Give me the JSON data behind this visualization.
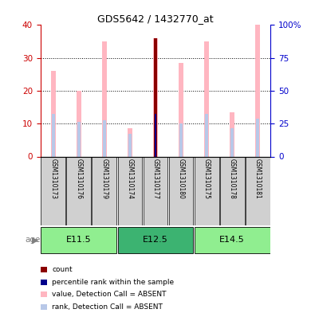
{
  "title": "GDS5642 / 1432770_at",
  "samples": [
    "GSM1310173",
    "GSM1310176",
    "GSM1310179",
    "GSM1310174",
    "GSM1310177",
    "GSM1310180",
    "GSM1310175",
    "GSM1310178",
    "GSM1310181"
  ],
  "groups": [
    {
      "label": "E11.5",
      "start": 0,
      "end": 2
    },
    {
      "label": "E12.5",
      "start": 3,
      "end": 5
    },
    {
      "label": "E14.5",
      "start": 6,
      "end": 8
    }
  ],
  "value_absent": [
    26.0,
    20.0,
    35.0,
    8.5,
    36.0,
    28.5,
    35.0,
    13.5,
    40.0
  ],
  "rank_absent": [
    13.0,
    10.5,
    11.0,
    7.0,
    13.0,
    10.0,
    13.0,
    8.5,
    11.5
  ],
  "count_val": [
    0,
    0,
    0,
    0,
    36.0,
    0,
    0,
    0,
    0
  ],
  "percentile_rank": [
    0,
    0,
    0,
    0,
    13.0,
    0,
    0,
    0,
    0
  ],
  "ylim_left": [
    0,
    40
  ],
  "ylim_right": [
    0,
    100
  ],
  "yticks_left": [
    0,
    10,
    20,
    30,
    40
  ],
  "yticks_right": [
    0,
    25,
    50,
    75,
    100
  ],
  "color_count": "#8B0000",
  "color_percentile": "#00008B",
  "color_value_absent": "#FFB6C1",
  "color_rank_absent": "#B8C8E8",
  "left_axis_color": "#cc0000",
  "right_axis_color": "#0000cc",
  "age_color_light": "#90EE90",
  "age_color_dark": "#3CB371",
  "grid_color": "black",
  "sample_box_color": "#d0d0d0",
  "legend_items": [
    {
      "color": "#8B0000",
      "label": "count"
    },
    {
      "color": "#00008B",
      "label": "percentile rank within the sample"
    },
    {
      "color": "#FFB6C1",
      "label": "value, Detection Call = ABSENT"
    },
    {
      "color": "#B8C8E8",
      "label": "rank, Detection Call = ABSENT"
    }
  ]
}
